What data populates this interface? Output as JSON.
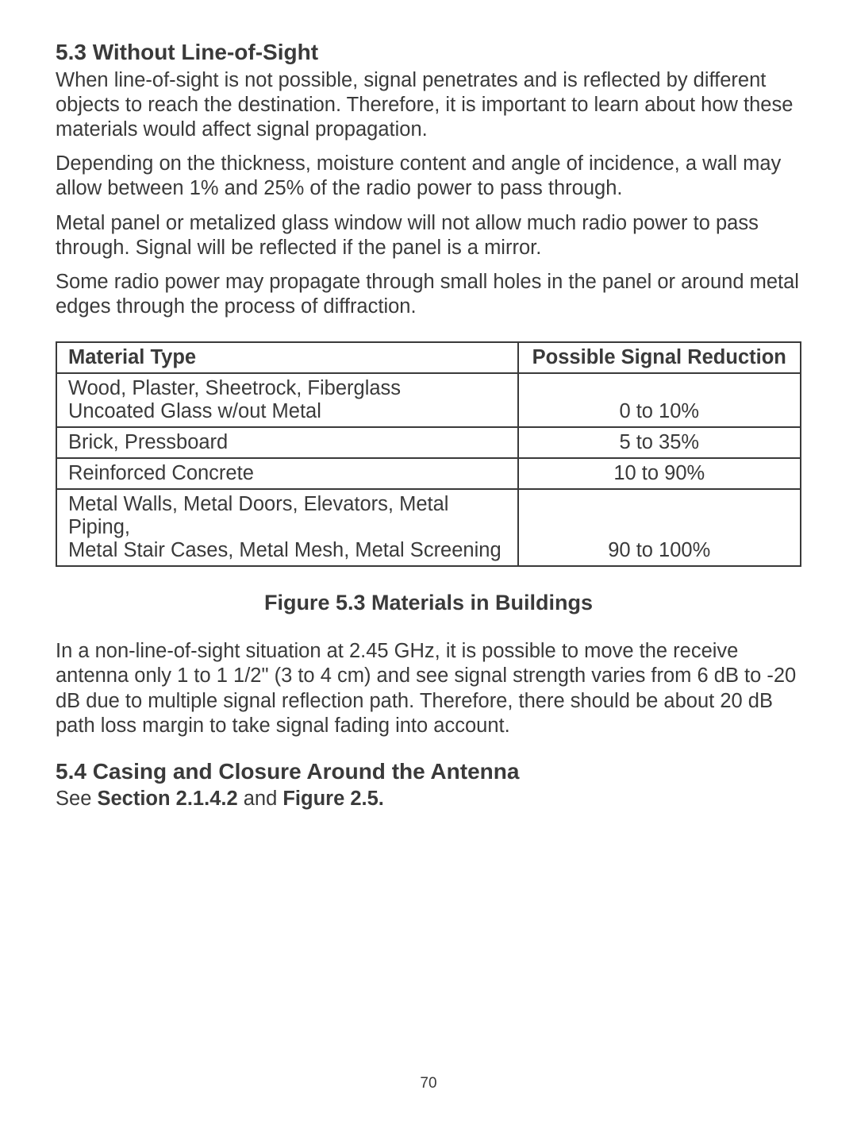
{
  "section1": {
    "heading": "5.3  Without Line-of-Sight",
    "para1": "When line-of-sight is not possible, signal penetrates and is reflected by different objects to reach the destination.  Therefore, it is important to learn about how these materials would affect signal propagation.",
    "para2": "Depending on the thickness, moisture content and angle of incidence, a wall may allow between 1% and 25% of the radio power to pass through.",
    "para3": "Metal panel or metalized glass window will not allow much radio power to pass through. Signal will be reflected if the panel is a mirror.",
    "para4": "Some radio power may propagate through small holes in the panel or around metal edges through the process of diffraction."
  },
  "table": {
    "header_material": "Material Type",
    "header_reduction": "Possible Signal Reduction",
    "rows": [
      {
        "material": "Wood, Plaster, Sheetrock, Fiberglass\nUncoated Glass w/out Metal",
        "reduction": "0 to 10%"
      },
      {
        "material": "Brick, Pressboard",
        "reduction": "5 to 35%"
      },
      {
        "material": "Reinforced Concrete",
        "reduction": "10 to 90%"
      },
      {
        "material": "Metal Walls, Metal Doors, Elevators, Metal Piping,\nMetal Stair Cases, Metal Mesh, Metal Screening",
        "reduction": "90 to 100%"
      }
    ]
  },
  "figure_caption": "Figure 5.3  Materials in Buildings",
  "post_table_para": "In a non-line-of-sight situation at 2.45 GHz, it is possible to move the receive antenna only 1 to 1 1/2\" (3 to 4 cm) and see signal strength varies from 6 dB to -20 dB due to multiple signal reflection path.  Therefore, there should be about 20 dB path loss margin to take signal fading into account.",
  "section2": {
    "heading": "5.4  Casing and Closure Around the Antenna",
    "ref_prefix": "See ",
    "ref_bold1": "Section 2.1.4.2",
    "ref_mid": " and ",
    "ref_bold2": "Figure 2.5."
  },
  "page_number": "70"
}
